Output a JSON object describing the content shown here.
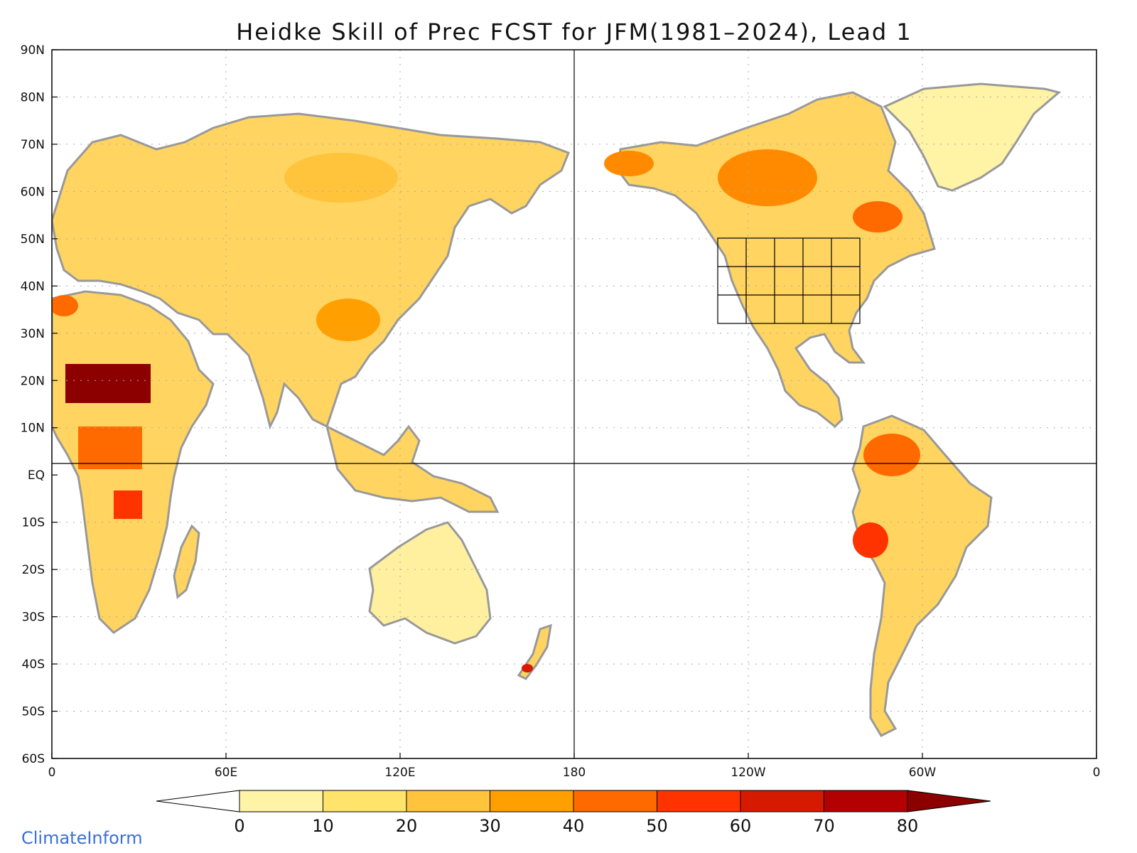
{
  "title": "Heidke Skill of Prec FCST for JFM(1981–2024), Lead 1",
  "credit": "ClimateInform",
  "map": {
    "lon_range": [
      0,
      360
    ],
    "lat_range": [
      -60,
      90
    ],
    "y_ticks": [
      "90N",
      "80N",
      "70N",
      "60N",
      "50N",
      "40N",
      "30N",
      "20N",
      "10N",
      "EQ",
      "10S",
      "20S",
      "30S",
      "40S",
      "50S",
      "60S"
    ],
    "x_ticks": [
      "0",
      "60E",
      "120E",
      "180",
      "120W",
      "60W",
      "0"
    ],
    "grid": "dotted",
    "coast_color": "#999999"
  },
  "colorbar": {
    "labels": [
      "0",
      "10",
      "20",
      "30",
      "40",
      "50",
      "60",
      "70",
      "80"
    ],
    "colors": [
      "#ffffff",
      "#fff3a6",
      "#ffe36b",
      "#ffc43c",
      "#ffa000",
      "#ff6a00",
      "#ff3300",
      "#d61a00",
      "#b30000",
      "#8c0000"
    ]
  }
}
